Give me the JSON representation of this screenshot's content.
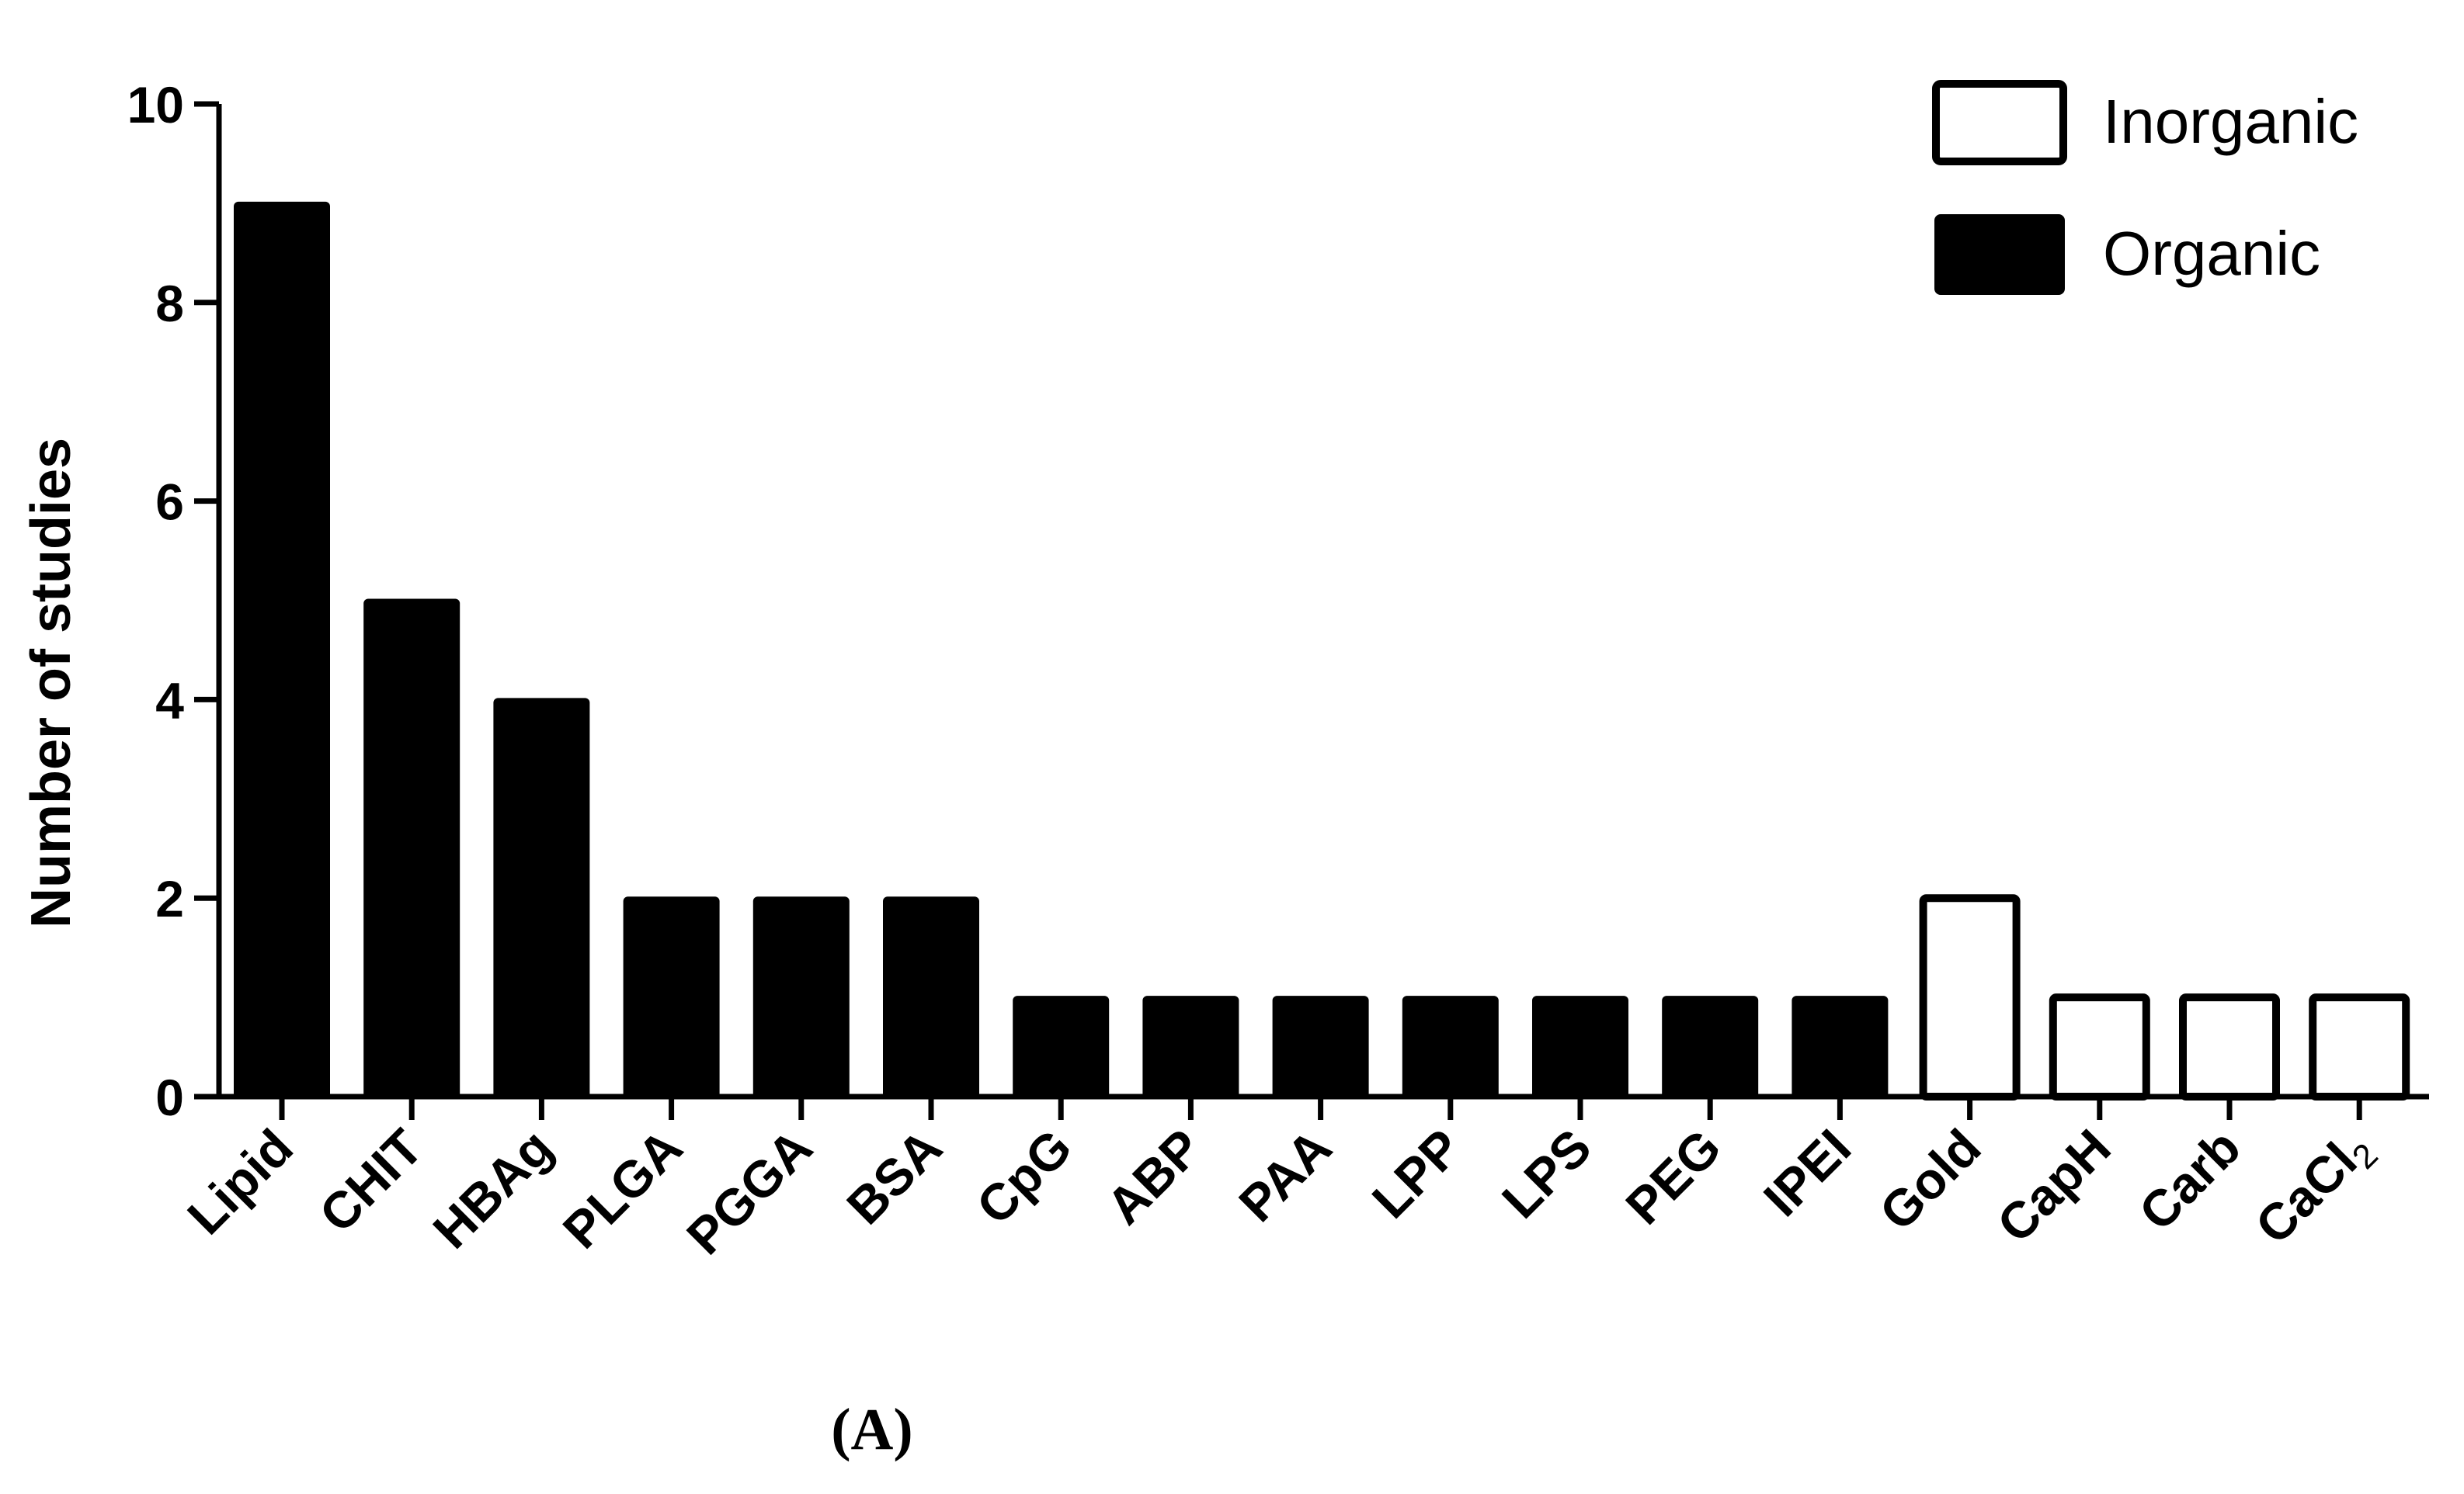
{
  "chart_data": {
    "type": "bar",
    "title": "",
    "xlabel": "",
    "ylabel": "Number of studies",
    "ylim": [
      0,
      10
    ],
    "yticks": [
      "0",
      "2",
      "4",
      "6",
      "8",
      "10"
    ],
    "categories": [
      "Lipid",
      "CHIT",
      "HBAg",
      "PLGA",
      "PGGA",
      "BSA",
      "CpG",
      "ABP",
      "PAA",
      "LPP",
      "LPS",
      "PEG",
      "IPEI",
      "Gold",
      "CapH",
      "Carb",
      "CaCl2"
    ],
    "values": [
      9,
      5,
      4,
      2,
      2,
      2,
      1,
      1,
      1,
      1,
      1,
      1,
      1,
      2,
      1,
      1,
      1
    ],
    "groups": [
      "Organic",
      "Organic",
      "Organic",
      "Organic",
      "Organic",
      "Organic",
      "Organic",
      "Organic",
      "Organic",
      "Organic",
      "Organic",
      "Organic",
      "Organic",
      "Inorganic",
      "Inorganic",
      "Inorganic",
      "Inorganic"
    ],
    "legend": {
      "position": "top-right",
      "items": [
        {
          "name": "Inorganic",
          "fill": "#ffffff",
          "stroke": "#000000"
        },
        {
          "name": "Organic",
          "fill": "#000000",
          "stroke": "#000000"
        }
      ]
    },
    "grid": false
  },
  "panel_label": "(A)",
  "colors": {
    "organic": "#000000",
    "inorganic": "#ffffff",
    "axis": "#000000"
  }
}
